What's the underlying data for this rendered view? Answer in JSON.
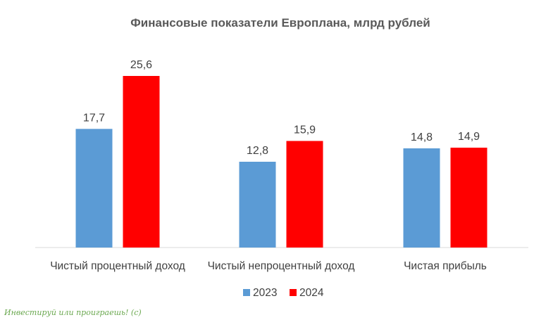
{
  "chart_data": {
    "type": "bar",
    "title": "Финансовые показатели Европлана, млрд рублей",
    "categories": [
      "Чистый процентный доход",
      "Чистый непроцентный доход",
      "Чистая прибыль"
    ],
    "series": [
      {
        "name": "2023",
        "values": [
          17.7,
          12.8,
          14.8
        ],
        "labels": [
          "17,7",
          "12,8",
          "14,8"
        ],
        "color": "#5b9bd5"
      },
      {
        "name": "2024",
        "values": [
          25.6,
          15.9,
          14.9
        ],
        "labels": [
          "25,6",
          "15,9",
          "14,9"
        ],
        "color": "#ff0000"
      }
    ],
    "ylim": [
      0,
      25.6
    ],
    "grid": false,
    "legend": "bottom"
  },
  "watermark": "Инвестируй или проиграешь! (с)"
}
